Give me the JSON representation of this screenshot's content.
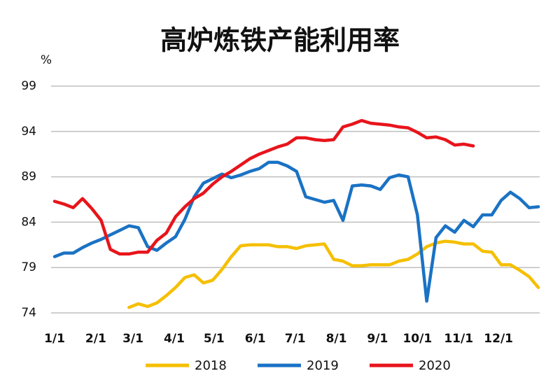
{
  "chart_data": {
    "type": "line",
    "title": "高炉炼铁产能利用率",
    "y_label": "%",
    "x": [
      0,
      7,
      14,
      21,
      28,
      35,
      42,
      49,
      56,
      63,
      70,
      77,
      84,
      91,
      98,
      105,
      112,
      119,
      126,
      133,
      140,
      147,
      154,
      161,
      168,
      175,
      182,
      189,
      196,
      203,
      210,
      217,
      224,
      231,
      238,
      245,
      252,
      259,
      266,
      273,
      280,
      287,
      294,
      301,
      308,
      315,
      322,
      329,
      336,
      343,
      350,
      357,
      364
    ],
    "xlim": [
      0,
      365
    ],
    "xticks": [
      {
        "value": 0,
        "label": "1/1"
      },
      {
        "value": 31,
        "label": "2/1"
      },
      {
        "value": 59,
        "label": "3/1"
      },
      {
        "value": 90,
        "label": "4/1"
      },
      {
        "value": 120,
        "label": "5/1"
      },
      {
        "value": 151,
        "label": "6/1"
      },
      {
        "value": 181,
        "label": "7/1"
      },
      {
        "value": 212,
        "label": "8/1"
      },
      {
        "value": 243,
        "label": "9/1"
      },
      {
        "value": 273,
        "label": "10/1"
      },
      {
        "value": 304,
        "label": "11/1"
      },
      {
        "value": 334,
        "label": "12/1"
      }
    ],
    "ylim": [
      74,
      99
    ],
    "yticks": [
      74,
      79,
      84,
      89,
      94,
      99
    ],
    "grid": true,
    "series": [
      {
        "name": "2018",
        "color": "#f5bf00",
        "values": [
          null,
          null,
          null,
          null,
          null,
          null,
          null,
          null,
          74.6,
          75.0,
          74.7,
          75.1,
          75.9,
          76.8,
          77.9,
          78.2,
          77.3,
          77.6,
          78.8,
          80.2,
          81.4,
          81.5,
          81.5,
          81.5,
          81.3,
          81.3,
          81.1,
          81.4,
          81.5,
          81.6,
          79.9,
          79.7,
          79.2,
          79.2,
          79.3,
          79.3,
          79.3,
          79.7,
          79.9,
          80.5,
          81.3,
          81.7,
          81.9,
          81.8,
          81.6,
          81.6,
          80.8,
          80.7,
          79.3,
          79.3,
          78.7,
          78.0,
          76.8
        ]
      },
      {
        "name": "2019",
        "color": "#1a72c4",
        "values": [
          80.2,
          80.6,
          80.6,
          81.2,
          81.7,
          82.1,
          82.6,
          83.1,
          83.6,
          83.4,
          81.3,
          80.9,
          81.7,
          82.4,
          84.3,
          86.8,
          88.3,
          88.8,
          89.3,
          88.9,
          89.2,
          89.6,
          89.9,
          90.6,
          90.6,
          90.2,
          89.6,
          86.8,
          86.5,
          86.2,
          86.4,
          84.2,
          88.0,
          88.1,
          88.0,
          87.6,
          88.9,
          89.2,
          89.0,
          84.8,
          75.3,
          82.3,
          83.6,
          82.9,
          84.2,
          83.5,
          84.8,
          84.8,
          86.4,
          87.3,
          86.6,
          85.6,
          85.7
        ]
      },
      {
        "name": "2020",
        "color": "#e8141b",
        "values": [
          86.3,
          86.0,
          85.6,
          86.6,
          85.5,
          84.2,
          81.0,
          80.5,
          80.5,
          80.7,
          80.7,
          82.0,
          82.8,
          84.6,
          85.7,
          86.6,
          87.2,
          88.2,
          89.0,
          89.6,
          90.3,
          91.0,
          91.5,
          91.9,
          92.3,
          92.6,
          93.3,
          93.3,
          93.1,
          93.0,
          93.1,
          94.5,
          94.8,
          95.2,
          94.9,
          94.8,
          94.7,
          94.5,
          94.4,
          93.9,
          93.3,
          93.4,
          93.1,
          92.5,
          92.6,
          92.4,
          null,
          null,
          null,
          null,
          null,
          null,
          null
        ]
      }
    ]
  }
}
